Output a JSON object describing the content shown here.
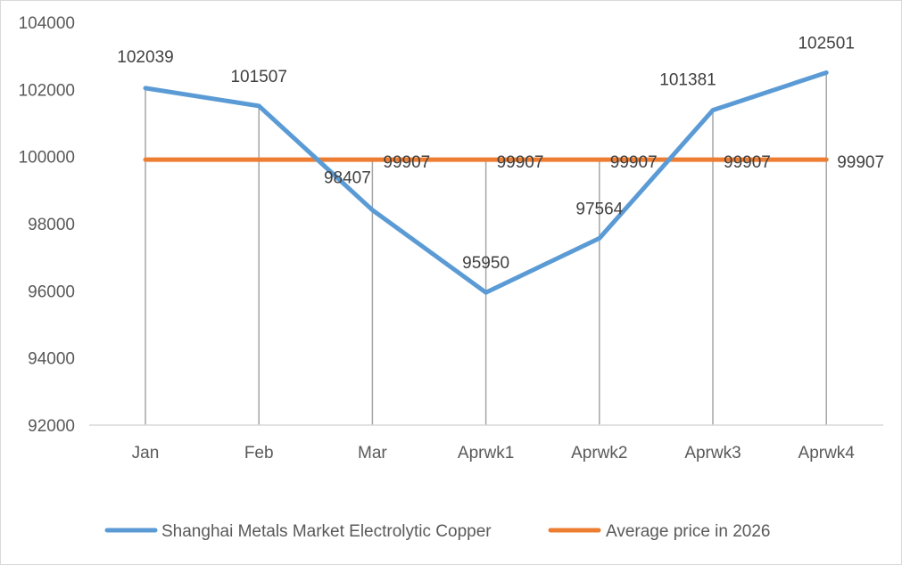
{
  "chart_data": {
    "type": "line",
    "title": "",
    "xlabel": "",
    "ylabel": "",
    "categories": [
      "Jan",
      "Feb",
      "Mar",
      "Aprwk1",
      "Aprwk2",
      "Aprwk3",
      "Aprwk4"
    ],
    "series": [
      {
        "name": "Shanghai Metals Market Electrolytic Copper",
        "color": "#5B9BD5",
        "values": [
          102039,
          101507,
          98407,
          95950,
          97564,
          101381,
          102501
        ]
      },
      {
        "name": "Average price in 2026",
        "color": "#ED7D31",
        "values": [
          99907,
          99907,
          99907,
          99907,
          99907,
          99907,
          99907
        ]
      }
    ],
    "ylim": [
      92000,
      104000
    ],
    "yticks": [
      92000,
      94000,
      96000,
      98000,
      100000,
      102000,
      104000
    ],
    "grid": false,
    "drop_lines": true,
    "data_labels": true,
    "legend_position": "bottom"
  },
  "legend": {
    "series1": "Shanghai Metals Market Electrolytic Copper",
    "series2": "Average price in 2026"
  }
}
